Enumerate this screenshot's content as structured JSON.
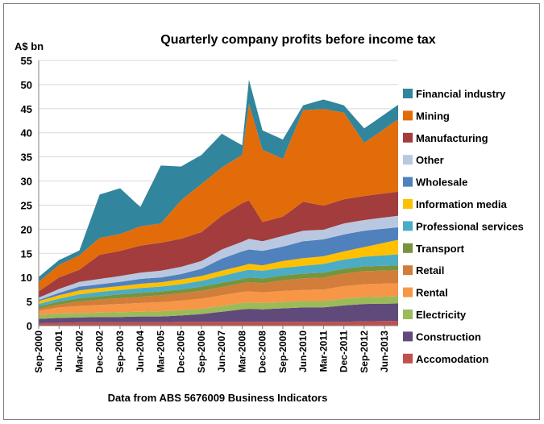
{
  "chart_data": {
    "type": "area",
    "stacked": true,
    "title": "Quarterly company profits before income tax",
    "ylabel": "A$ bn",
    "ylim": [
      0,
      55
    ],
    "yticks": [
      0,
      5,
      10,
      15,
      20,
      25,
      30,
      35,
      40,
      45,
      50,
      55
    ],
    "xtick_labels": [
      "Sep-2000",
      "Jun-2001",
      "Mar-2002",
      "Dec-2002",
      "Sep-2003",
      "Jun-2004",
      "Mar-2005",
      "Dec-2005",
      "Sep-2006",
      "Jun-2007",
      "Mar-2008",
      "Dec-2008",
      "Sep-2009",
      "Jun-2010",
      "Mar-2011",
      "Dec-2011",
      "Sep-2012",
      "Jun-2013"
    ],
    "source_note": "Data from ABS 5676009 Business Indicators",
    "grid": true,
    "legend_position": "right",
    "x_start": "Sep-2000",
    "x_end": "Dec-2013",
    "x_frequency": "quarterly",
    "x_key_points": [
      [
        "Sep-2000",
        [
          0.5,
          0.9,
          0.8,
          0.9,
          0.4,
          0.5,
          0.5,
          0.6,
          0.2,
          0.5,
          1.3,
          2.0,
          1.0
        ]
      ],
      [
        "Jun-2001",
        [
          0.6,
          1.0,
          0.9,
          1.3,
          0.6,
          0.6,
          0.6,
          0.7,
          0.5,
          0.8,
          2.4,
          2.6,
          1.0
        ]
      ],
      [
        "Mar-2002",
        [
          0.7,
          1.0,
          0.9,
          1.5,
          0.9,
          0.7,
          0.8,
          0.8,
          0.8,
          1.0,
          2.5,
          3.0,
          1.0
        ]
      ],
      [
        "Dec-2002",
        [
          0.7,
          1.1,
          0.9,
          1.6,
          1.1,
          0.7,
          0.9,
          0.8,
          0.8,
          1.1,
          5.0,
          3.5,
          9.0
        ]
      ],
      [
        "Sep-2003",
        [
          0.7,
          1.1,
          1.0,
          1.7,
          1.2,
          0.8,
          0.9,
          0.8,
          0.9,
          1.2,
          5.2,
          3.5,
          9.5
        ]
      ],
      [
        "Jun-2004",
        [
          0.7,
          1.2,
          1.0,
          1.8,
          1.3,
          0.8,
          1.0,
          0.9,
          1.0,
          1.3,
          5.6,
          4.0,
          4.0
        ]
      ],
      [
        "Mar-2005",
        [
          0.7,
          1.2,
          1.1,
          1.9,
          1.4,
          0.8,
          1.0,
          0.9,
          1.0,
          1.4,
          5.8,
          4.0,
          12.0
        ]
      ],
      [
        "Dec-2005",
        [
          0.8,
          1.3,
          1.1,
          2.0,
          1.5,
          0.8,
          1.1,
          1.0,
          1.1,
          1.5,
          5.8,
          8.0,
          7.0
        ]
      ],
      [
        "Sep-2006",
        [
          0.8,
          1.6,
          1.1,
          2.1,
          1.6,
          0.9,
          1.2,
          1.0,
          1.5,
          1.6,
          6.0,
          10.0,
          6.0
        ]
      ],
      [
        "Jun-2007",
        [
          0.8,
          2.1,
          1.2,
          2.2,
          1.7,
          0.9,
          1.4,
          1.1,
          2.5,
          1.9,
          7.0,
          10.0,
          7.0
        ]
      ],
      [
        "Mar-2008",
        [
          0.8,
          2.6,
          1.3,
          2.3,
          1.8,
          0.9,
          1.6,
          1.1,
          3.0,
          2.0,
          8.0,
          10.0,
          2.0
        ]
      ],
      [
        "Jun-2008",
        [
          0.8,
          2.7,
          1.3,
          2.3,
          1.9,
          1.0,
          1.6,
          1.2,
          3.0,
          2.2,
          8.0,
          20.0,
          5.0
        ]
      ],
      [
        "Dec-2008",
        [
          0.8,
          2.6,
          1.3,
          2.2,
          1.9,
          1.0,
          1.6,
          1.1,
          3.0,
          2.0,
          4.0,
          15.0,
          4.0
        ]
      ],
      [
        "Sep-2009",
        [
          0.8,
          2.8,
          1.3,
          2.3,
          2.2,
          1.0,
          1.6,
          1.4,
          3.0,
          2.2,
          4.0,
          12.0,
          4.0
        ]
      ],
      [
        "Jun-2010",
        [
          0.8,
          3.0,
          1.3,
          2.3,
          2.4,
          1.0,
          1.6,
          1.6,
          3.5,
          2.2,
          6.0,
          19.0,
          1.0
        ]
      ],
      [
        "Mar-2011",
        [
          0.8,
          3.0,
          1.3,
          2.4,
          2.5,
          1.0,
          1.8,
          1.6,
          3.5,
          2.0,
          5.0,
          20.0,
          2.0
        ]
      ],
      [
        "Dec-2011",
        [
          0.8,
          3.4,
          1.4,
          2.6,
          2.6,
          1.0,
          1.9,
          1.7,
          3.5,
          2.3,
          5.0,
          18.0,
          1.5
        ]
      ],
      [
        "Sep-2012",
        [
          0.9,
          3.6,
          1.4,
          2.7,
          2.7,
          1.0,
          2.0,
          2.0,
          3.4,
          2.2,
          5.0,
          11.0,
          3.0
        ]
      ],
      [
        "Dec-2013",
        [
          1.0,
          3.6,
          1.5,
          2.7,
          2.7,
          1.0,
          2.3,
          3.0,
          2.6,
          2.4,
          5.0,
          15.0,
          3.0
        ]
      ]
    ],
    "series": [
      {
        "name": "Accomodation",
        "color": "#c0504d"
      },
      {
        "name": "Construction",
        "color": "#604a7b"
      },
      {
        "name": "Electricity",
        "color": "#9bbb59"
      },
      {
        "name": "Rental",
        "color": "#f79646"
      },
      {
        "name": "Retail",
        "color": "#d27d3a"
      },
      {
        "name": "Transport",
        "color": "#77933c"
      },
      {
        "name": "Professional services",
        "color": "#4bacc6"
      },
      {
        "name": "Information media",
        "color": "#ffc000"
      },
      {
        "name": "Wholesale",
        "color": "#4f81bd"
      },
      {
        "name": "Other",
        "color": "#b9c8e0"
      },
      {
        "name": "Manufacturing",
        "color": "#a33c3c"
      },
      {
        "name": "Mining",
        "color": "#e36c0a"
      },
      {
        "name": "Financial industry",
        "color": "#31859c"
      }
    ],
    "legend_order": [
      "Financial industry",
      "Mining",
      "Manufacturing",
      "Other",
      "Wholesale",
      "Information media",
      "Professional services",
      "Transport",
      "Retail",
      "Rental",
      "Electricity",
      "Construction",
      "Accomodation"
    ]
  }
}
